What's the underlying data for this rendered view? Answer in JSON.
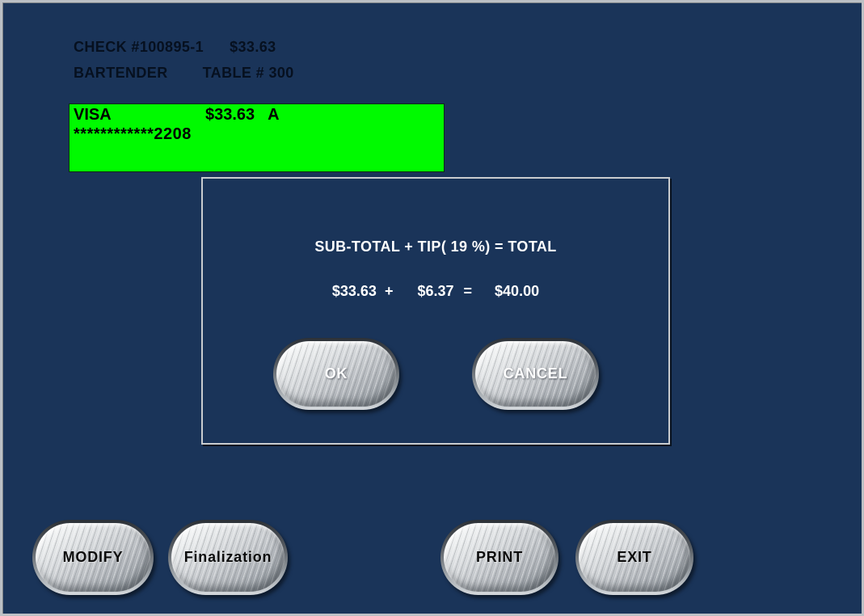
{
  "colors": {
    "background": "#1a3459",
    "frame_border": "#bcc0c5",
    "payment_highlight": "#00fa00",
    "dialog_border": "#c9cccf",
    "header_text": "#06101f",
    "dialog_text": "#ffffff"
  },
  "header": {
    "check_label": "CHECK #100895-1",
    "check_amount": "$33.63",
    "server": "BARTENDER",
    "table": "TABLE # 300"
  },
  "payment": {
    "card_type": "VISA",
    "amount": "$33.63",
    "approval_flag": "A",
    "masked_number": "************2208"
  },
  "dialog": {
    "formula": "SUB-TOTAL + TIP( 19 %) = TOTAL",
    "subtotal": "$33.63",
    "plus": "+",
    "tip": "$6.37",
    "equals": "=",
    "total": "$40.00",
    "ok_label": "OK",
    "cancel_label": "CANCEL"
  },
  "actions": {
    "modify_label": "MODIFY",
    "finalization_label": "Finalization",
    "print_label": "PRINT",
    "exit_label": "EXIT"
  }
}
